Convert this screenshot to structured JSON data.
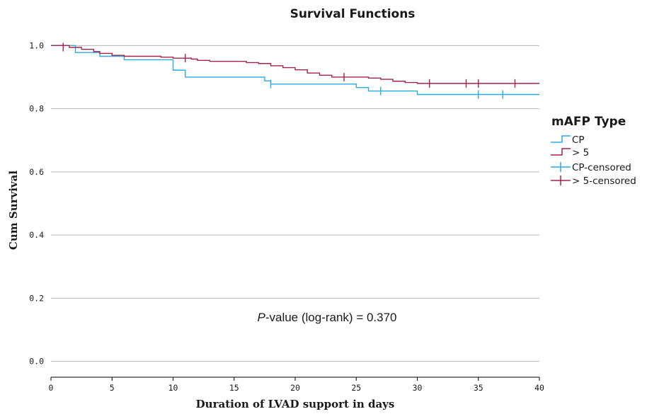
{
  "chart_data": {
    "type": "line",
    "subtype": "kaplan-meier step",
    "title": "Survival Functions",
    "xlabel": "Duration of LVAD support in days",
    "ylabel": "Cum Survival",
    "xlim": [
      0,
      40
    ],
    "ylim": [
      -0.05,
      1.05
    ],
    "x_ticks": [
      0,
      5,
      10,
      15,
      20,
      25,
      30,
      35,
      40
    ],
    "y_ticks": [
      0.0,
      0.2,
      0.4,
      0.6,
      0.8,
      1.0
    ],
    "x_tick_labels": [
      "0",
      "5",
      "10",
      "15",
      "20",
      "25",
      "30",
      "35",
      "40"
    ],
    "y_tick_labels": [
      "0.0",
      "0.2",
      "0.4",
      "0.6",
      "0.8",
      "1.0"
    ],
    "grid": "horizontal",
    "legend": {
      "title": "mAFP Type",
      "position": "right",
      "entries": [
        "CP",
        "> 5",
        "CP-censored",
        "> 5-censored"
      ]
    },
    "annotation_prefix": "P",
    "annotation_rest": "-value (log-rank) = 0.370",
    "series": [
      {
        "name": "CP",
        "color": "#29abe2",
        "steps": [
          [
            0,
            1.0
          ],
          [
            2,
            0.978
          ],
          [
            3,
            0.978
          ],
          [
            4,
            0.966
          ],
          [
            6,
            0.955
          ],
          [
            10,
            0.922
          ],
          [
            11,
            0.9
          ],
          [
            17.5,
            0.888
          ],
          [
            18,
            0.878
          ],
          [
            25,
            0.867
          ],
          [
            26,
            0.856
          ],
          [
            30,
            0.845
          ],
          [
            40,
            0.845
          ]
        ],
        "censored": [
          [
            1,
            0.995
          ],
          [
            18,
            0.878
          ],
          [
            27,
            0.856
          ],
          [
            35,
            0.845
          ],
          [
            37,
            0.845
          ]
        ]
      },
      {
        "name": "> 5",
        "color": "#a4234b",
        "steps": [
          [
            0,
            1.0
          ],
          [
            1.5,
            0.994
          ],
          [
            2.5,
            0.988
          ],
          [
            3.5,
            0.981
          ],
          [
            4,
            0.975
          ],
          [
            5,
            0.969
          ],
          [
            6,
            0.966
          ],
          [
            9,
            0.963
          ],
          [
            10,
            0.96
          ],
          [
            11.5,
            0.957
          ],
          [
            12,
            0.953
          ],
          [
            13,
            0.95
          ],
          [
            16,
            0.946
          ],
          [
            17,
            0.943
          ],
          [
            18,
            0.936
          ],
          [
            19,
            0.93
          ],
          [
            20,
            0.923
          ],
          [
            21,
            0.913
          ],
          [
            22,
            0.906
          ],
          [
            23,
            0.9
          ],
          [
            26,
            0.897
          ],
          [
            27,
            0.893
          ],
          [
            28,
            0.887
          ],
          [
            29,
            0.883
          ],
          [
            30,
            0.88
          ],
          [
            40,
            0.88
          ]
        ],
        "censored": [
          [
            1,
            0.995
          ],
          [
            11,
            0.96
          ],
          [
            24,
            0.9
          ],
          [
            31,
            0.88
          ],
          [
            34,
            0.88
          ],
          [
            35,
            0.88
          ],
          [
            38,
            0.88
          ]
        ]
      }
    ]
  }
}
